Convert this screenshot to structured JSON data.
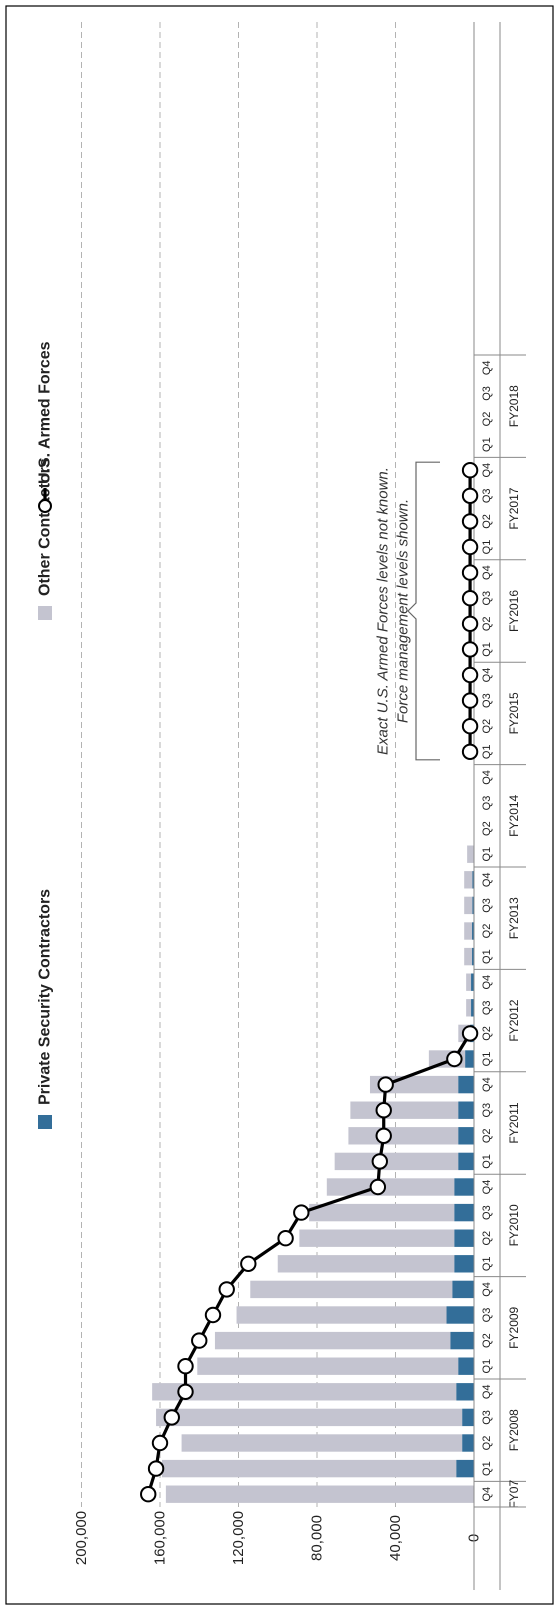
{
  "chart_data": {
    "type": "bar",
    "orientation": "rotated-90-ccw",
    "stacked": true,
    "categories": [
      "FY07 Q4",
      "FY2008 Q1",
      "FY2008 Q2",
      "FY2008 Q3",
      "FY2008 Q4",
      "FY2009 Q1",
      "FY2009 Q2",
      "FY2009 Q3",
      "FY2009 Q4",
      "FY2010 Q1",
      "FY2010 Q2",
      "FY2010 Q3",
      "FY2010 Q4",
      "FY2011 Q1",
      "FY2011 Q2",
      "FY2011 Q3",
      "FY2011 Q4",
      "FY2012 Q1",
      "FY2012 Q2",
      "FY2012 Q3",
      "FY2012 Q4",
      "FY2013 Q1",
      "FY2013 Q2",
      "FY2013 Q3",
      "FY2013 Q4",
      "FY2014 Q1",
      "FY2014 Q2",
      "FY2014 Q3",
      "FY2014 Q4",
      "FY2015 Q1",
      "FY2015 Q2",
      "FY2015 Q3",
      "FY2015 Q4",
      "FY2016 Q1",
      "FY2016 Q2",
      "FY2016 Q3",
      "FY2016 Q4",
      "FY2017 Q1",
      "FY2017 Q2",
      "FY2017 Q3",
      "FY2017 Q4",
      "FY2018 Q1",
      "FY2018 Q2",
      "FY2018 Q3",
      "FY2018 Q4"
    ],
    "quarter_labels": [
      "Q4",
      "Q1",
      "Q2",
      "Q3",
      "Q4",
      "Q1",
      "Q2",
      "Q3",
      "Q4",
      "Q1",
      "Q2",
      "Q3",
      "Q4",
      "Q1",
      "Q2",
      "Q3",
      "Q4",
      "Q1",
      "Q2",
      "Q3",
      "Q4",
      "Q1",
      "Q2",
      "Q3",
      "Q4",
      "Q1",
      "Q2",
      "Q3",
      "Q4",
      "Q1",
      "Q2",
      "Q3",
      "Q4",
      "Q1",
      "Q2",
      "Q3",
      "Q4",
      "Q1",
      "Q2",
      "Q3",
      "Q4",
      "Q1",
      "Q2",
      "Q3",
      "Q4"
    ],
    "fiscal_years": [
      {
        "label": "FY07",
        "first": 0,
        "count": 1
      },
      {
        "label": "FY2008",
        "first": 1,
        "count": 4
      },
      {
        "label": "FY2009",
        "first": 5,
        "count": 4
      },
      {
        "label": "FY2010",
        "first": 9,
        "count": 4
      },
      {
        "label": "FY2011",
        "first": 13,
        "count": 4
      },
      {
        "label": "FY2012",
        "first": 17,
        "count": 4
      },
      {
        "label": "FY2013",
        "first": 21,
        "count": 4
      },
      {
        "label": "FY2014",
        "first": 25,
        "count": 4
      },
      {
        "label": "FY2015",
        "first": 29,
        "count": 4
      },
      {
        "label": "FY2016",
        "first": 33,
        "count": 4
      },
      {
        "label": "FY2017",
        "first": 37,
        "count": 4
      },
      {
        "label": "FY2018",
        "first": 41,
        "count": 4
      }
    ],
    "series": [
      {
        "name": "Private Security Contractors",
        "kind": "bar",
        "color": "#336e99",
        "values": [
          0,
          9000,
          6000,
          6000,
          9000,
          8000,
          12000,
          14000,
          11000,
          10000,
          10000,
          10000,
          10000,
          8000,
          8000,
          8000,
          8000,
          4500,
          2000,
          1500,
          1500,
          1000,
          1000,
          800,
          800,
          0,
          0,
          0,
          0,
          0,
          0,
          0,
          0,
          0,
          0,
          0,
          0,
          0,
          0,
          0,
          0,
          0,
          0,
          0,
          0
        ]
      },
      {
        "name": "Other Contractors",
        "kind": "bar",
        "color": "#c4c4d0",
        "values": [
          157000,
          150000,
          143000,
          156000,
          155000,
          133000,
          120000,
          107000,
          103000,
          90000,
          79000,
          74000,
          65000,
          63000,
          56000,
          55000,
          45000,
          18500,
          6000,
          2500,
          2500,
          4000,
          4000,
          4200,
          4200,
          3500,
          0,
          0,
          0,
          0,
          0,
          0,
          0,
          0,
          0,
          0,
          0,
          0,
          0,
          0,
          0,
          0,
          0,
          0,
          0
        ]
      },
      {
        "name": "U.S. Armed Forces",
        "kind": "line",
        "color": "#000000",
        "values": [
          166000,
          162000,
          160000,
          154000,
          147000,
          147000,
          140000,
          133000,
          126000,
          115000,
          96000,
          88000,
          49000,
          48000,
          46000,
          46000,
          45000,
          10000,
          2000,
          null,
          null,
          null,
          null,
          null,
          null,
          null,
          null,
          null,
          null,
          2000,
          2000,
          2000,
          2000,
          2000,
          2000,
          2000,
          2000,
          2000,
          2000,
          2000,
          2000,
          null,
          null,
          null,
          null
        ]
      }
    ],
    "ylim": [
      0,
      200000
    ],
    "y_ticks": [
      0,
      40000,
      80000,
      120000,
      160000,
      200000
    ],
    "y_tick_labels": [
      "0",
      "40,000",
      "80,000",
      "120,000",
      "160,000",
      "200,000"
    ],
    "grid": true,
    "legend": [
      "Private Security Contractors",
      "Other Contractors",
      "U.S. Armed Forces"
    ],
    "annotation": {
      "lines": [
        "Exact U.S. Armed Forces levels not known.",
        "Force management levels shown."
      ],
      "spans": "FY2015 Q1 – FY2017 Q4"
    }
  }
}
